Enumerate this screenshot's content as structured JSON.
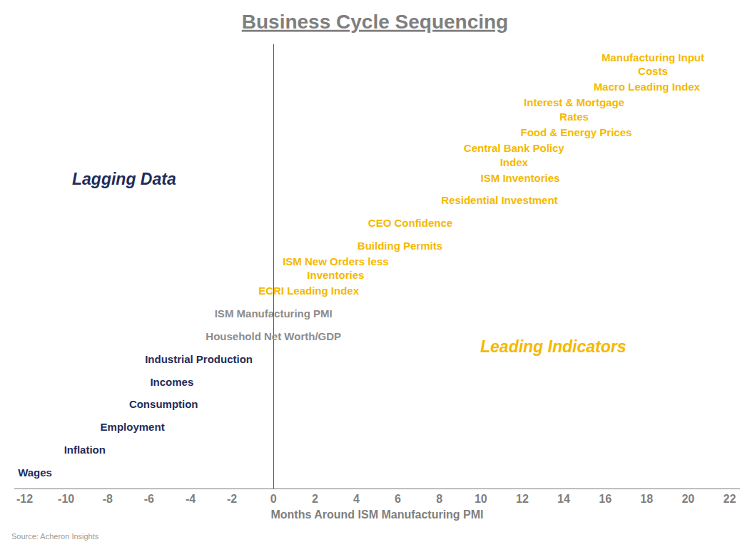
{
  "chart_data": {
    "type": "scatter",
    "marker": "text",
    "title": "Business Cycle Sequencing",
    "x_label": "Months Around ISM Manufacturing PMI",
    "source": "Source: Acheron Insights",
    "labels": [
      "Manufacturing Input\nCosts",
      "Macro Leading Index",
      "Interest & Mortgage\nRates",
      "Food & Energy Prices",
      "Central Bank Policy\nIndex",
      "ISM Inventories",
      "Residential Investment",
      "CEO Confidence",
      "Building Permits",
      "ISM New Orders less\nInventories",
      "ECRI Leading Index",
      "ISM Manufacturing PMI",
      "Household Net Worth/GDP",
      "Industrial Production",
      "Incomes",
      "Consumption",
      "Employment",
      "Inflation",
      "Wages"
    ],
    "x": [
      18.3,
      18.0,
      14.5,
      14.6,
      11.6,
      11.9,
      10.9,
      6.6,
      6.1,
      3.0,
      1.7,
      0,
      0,
      -3.6,
      -4.9,
      -5.3,
      -6.8,
      -9.1,
      -11.5
    ],
    "colors": [
      "#f5b800",
      "#f5b800",
      "#f5b800",
      "#f5b800",
      "#f5b800",
      "#f5b800",
      "#f5b800",
      "#f5b800",
      "#f5b800",
      "#f5b800",
      "#f5b800",
      "#8c8c8c",
      "#8c8c8c",
      "#1f2d5a",
      "#1f2d5a",
      "#1f2d5a",
      "#1f2d5a",
      "#1f2d5a",
      "#1f2d5a"
    ],
    "annotations": [
      {
        "text": "Lagging Data",
        "color": "#1f2d5a"
      },
      {
        "text": "Leading Indicators",
        "color": "#f5b800"
      }
    ],
    "xlim": [
      -12.5,
      22.5
    ],
    "xticks": [
      -12,
      -10,
      -8,
      -6,
      -4,
      -2,
      0,
      2,
      4,
      6,
      8,
      10,
      12,
      14,
      16,
      18,
      20,
      22
    ],
    "grid": false,
    "tick_labels": "x"
  }
}
